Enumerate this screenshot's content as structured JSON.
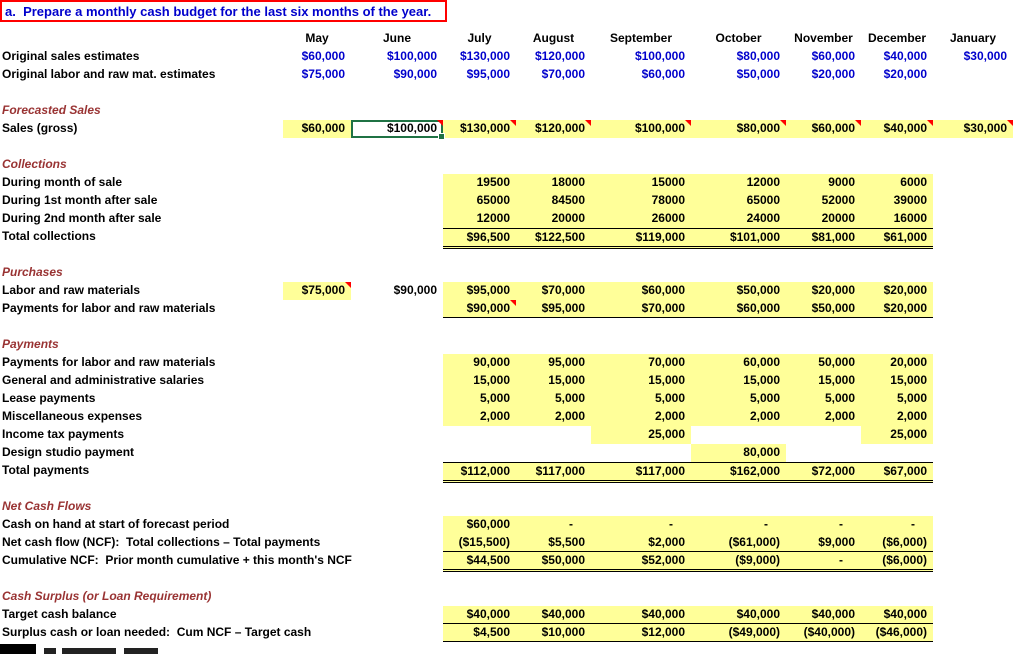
{
  "sheet": {
    "title": "a.  Prepare a monthly cash budget for the last six months of the year.",
    "months": [
      "May",
      "June",
      "July",
      "August",
      "September",
      "October",
      "November",
      "December",
      "January"
    ],
    "colors": {
      "title_text": "#0000CC",
      "title_border": "#FF0000",
      "section_text": "#993333",
      "estimate_value_blue": "#0000CC",
      "highlight_yellow": "#FFFF99",
      "comment_indicator_red": "#FF0000",
      "selection_green": "#1F7244"
    },
    "selected_cell": {
      "row": "Sales (gross)",
      "column": "June",
      "value": "$100,000"
    },
    "rows": [
      {
        "label": "Original sales estimates",
        "cells": [
          {
            "v": "$60,000",
            "c": "blue"
          },
          {
            "v": "$100,000",
            "c": "blue"
          },
          {
            "v": "$130,000",
            "c": "blue"
          },
          {
            "v": "$120,000",
            "c": "blue"
          },
          {
            "v": "$100,000",
            "c": "blue"
          },
          {
            "v": "$80,000",
            "c": "blue"
          },
          {
            "v": "$60,000",
            "c": "blue"
          },
          {
            "v": "$40,000",
            "c": "blue"
          },
          {
            "v": "$30,000",
            "c": "blue"
          }
        ]
      },
      {
        "label": "Original labor and raw mat. estimates",
        "cells": [
          {
            "v": "$75,000",
            "c": "blue"
          },
          {
            "v": "$90,000",
            "c": "blue"
          },
          {
            "v": "$95,000",
            "c": "blue"
          },
          {
            "v": "$70,000",
            "c": "blue"
          },
          {
            "v": "$60,000",
            "c": "blue"
          },
          {
            "v": "$50,000",
            "c": "blue"
          },
          {
            "v": "$20,000",
            "c": "blue"
          },
          {
            "v": "$20,000",
            "c": "blue"
          },
          null
        ]
      },
      {
        "type": "blank"
      },
      {
        "type": "section",
        "label": "Forecasted Sales"
      },
      {
        "label": "Sales (gross)",
        "cells": [
          {
            "v": "$60,000",
            "bg": "y"
          },
          {
            "v": "$100,000",
            "sel": true,
            "tri": true
          },
          {
            "v": "$130,000",
            "bg": "y",
            "tri": true
          },
          {
            "v": "$120,000",
            "bg": "y",
            "tri": true
          },
          {
            "v": "$100,000",
            "bg": "y",
            "tri": true
          },
          {
            "v": "$80,000",
            "bg": "y",
            "tri": true
          },
          {
            "v": "$60,000",
            "bg": "y",
            "tri": true
          },
          {
            "v": "$40,000",
            "bg": "y",
            "tri": true
          },
          {
            "v": "$30,000",
            "bg": "y",
            "tri": true
          }
        ]
      },
      {
        "type": "blank"
      },
      {
        "type": "section",
        "label": "Collections"
      },
      {
        "label": "During month of sale",
        "cells": [
          null,
          null,
          {
            "v": "19500",
            "bg": "y"
          },
          {
            "v": "18000",
            "bg": "y"
          },
          {
            "v": "15000",
            "bg": "y"
          },
          {
            "v": "12000",
            "bg": "y"
          },
          {
            "v": "9000",
            "bg": "y"
          },
          {
            "v": "6000",
            "bg": "y"
          },
          null
        ]
      },
      {
        "label": "During 1st month after sale",
        "cells": [
          null,
          null,
          {
            "v": "65000",
            "bg": "y"
          },
          {
            "v": "84500",
            "bg": "y"
          },
          {
            "v": "78000",
            "bg": "y"
          },
          {
            "v": "65000",
            "bg": "y"
          },
          {
            "v": "52000",
            "bg": "y"
          },
          {
            "v": "39000",
            "bg": "y"
          },
          null
        ]
      },
      {
        "label": "During 2nd month after sale",
        "cells": [
          null,
          null,
          {
            "v": "12000",
            "bg": "y"
          },
          {
            "v": "20000",
            "bg": "y"
          },
          {
            "v": "26000",
            "bg": "y"
          },
          {
            "v": "24000",
            "bg": "y"
          },
          {
            "v": "20000",
            "bg": "y"
          },
          {
            "v": "16000",
            "bg": "y"
          },
          null
        ]
      },
      {
        "label": "Total collections",
        "cells": [
          null,
          null,
          {
            "v": "$96,500",
            "bg": "y",
            "bt": true,
            "bb": "d"
          },
          {
            "v": "$122,500",
            "bg": "y",
            "bt": true,
            "bb": "d"
          },
          {
            "v": "$119,000",
            "bg": "y",
            "bt": true,
            "bb": "d"
          },
          {
            "v": "$101,000",
            "bg": "y",
            "bt": true,
            "bb": "d"
          },
          {
            "v": "$81,000",
            "bg": "y",
            "bt": true,
            "bb": "d"
          },
          {
            "v": "$61,000",
            "bg": "y",
            "bt": true,
            "bb": "d"
          },
          null
        ]
      },
      {
        "type": "blank"
      },
      {
        "type": "section",
        "label": "Purchases"
      },
      {
        "label": "Labor and raw materials",
        "cells": [
          {
            "v": "$75,000",
            "bg": "y",
            "tri": true
          },
          {
            "v": "$90,000"
          },
          {
            "v": "$95,000",
            "bg": "y"
          },
          {
            "v": "$70,000",
            "bg": "y"
          },
          {
            "v": "$60,000",
            "bg": "y"
          },
          {
            "v": "$50,000",
            "bg": "y"
          },
          {
            "v": "$20,000",
            "bg": "y"
          },
          {
            "v": "$20,000",
            "bg": "y"
          },
          null
        ]
      },
      {
        "label": "Payments for labor and raw materials",
        "cells": [
          null,
          null,
          {
            "v": "$90,000",
            "bg": "y",
            "tri": true,
            "bb": "s"
          },
          {
            "v": "$95,000",
            "bg": "y",
            "bb": "s"
          },
          {
            "v": "$70,000",
            "bg": "y",
            "bb": "s"
          },
          {
            "v": "$60,000",
            "bg": "y",
            "bb": "s"
          },
          {
            "v": "$50,000",
            "bg": "y",
            "bb": "s"
          },
          {
            "v": "$20,000",
            "bg": "y",
            "bb": "s"
          },
          null
        ]
      },
      {
        "type": "blank"
      },
      {
        "type": "section",
        "label": "Payments"
      },
      {
        "label": "Payments for labor and raw materials",
        "cells": [
          null,
          null,
          {
            "v": "90,000",
            "bg": "y"
          },
          {
            "v": "95,000",
            "bg": "y"
          },
          {
            "v": "70,000",
            "bg": "y"
          },
          {
            "v": "60,000",
            "bg": "y"
          },
          {
            "v": "50,000",
            "bg": "y"
          },
          {
            "v": "20,000",
            "bg": "y"
          },
          null
        ]
      },
      {
        "label": "General and administrative salaries",
        "cells": [
          null,
          null,
          {
            "v": "15,000",
            "bg": "y"
          },
          {
            "v": "15,000",
            "bg": "y"
          },
          {
            "v": "15,000",
            "bg": "y"
          },
          {
            "v": "15,000",
            "bg": "y"
          },
          {
            "v": "15,000",
            "bg": "y"
          },
          {
            "v": "15,000",
            "bg": "y"
          },
          null
        ]
      },
      {
        "label": "Lease payments",
        "cells": [
          null,
          null,
          {
            "v": "5,000",
            "bg": "y"
          },
          {
            "v": "5,000",
            "bg": "y"
          },
          {
            "v": "5,000",
            "bg": "y"
          },
          {
            "v": "5,000",
            "bg": "y"
          },
          {
            "v": "5,000",
            "bg": "y"
          },
          {
            "v": "5,000",
            "bg": "y"
          },
          null
        ]
      },
      {
        "label": "Miscellaneous expenses",
        "cells": [
          null,
          null,
          {
            "v": "2,000",
            "bg": "y"
          },
          {
            "v": "2,000",
            "bg": "y"
          },
          {
            "v": "2,000",
            "bg": "y"
          },
          {
            "v": "2,000",
            "bg": "y"
          },
          {
            "v": "2,000",
            "bg": "y"
          },
          {
            "v": "2,000",
            "bg": "y"
          },
          null
        ]
      },
      {
        "label": "Income tax payments",
        "cells": [
          null,
          null,
          null,
          null,
          {
            "v": "25,000",
            "bg": "y"
          },
          null,
          null,
          {
            "v": "25,000",
            "bg": "y"
          },
          null
        ]
      },
      {
        "label": "Design studio payment",
        "cells": [
          null,
          null,
          null,
          null,
          null,
          {
            "v": "80,000",
            "bg": "y"
          },
          null,
          null,
          null
        ]
      },
      {
        "label": "Total payments",
        "cells": [
          null,
          null,
          {
            "v": "$112,000",
            "bg": "y",
            "bt": true,
            "bb": "d"
          },
          {
            "v": "$117,000",
            "bg": "y",
            "bt": true,
            "bb": "d"
          },
          {
            "v": "$117,000",
            "bg": "y",
            "bt": true,
            "bb": "d"
          },
          {
            "v": "$162,000",
            "bg": "y",
            "bt": true,
            "bb": "d"
          },
          {
            "v": "$72,000",
            "bg": "y",
            "bt": true,
            "bb": "d"
          },
          {
            "v": "$67,000",
            "bg": "y",
            "bt": true,
            "bb": "d"
          },
          null
        ]
      },
      {
        "type": "blank"
      },
      {
        "type": "section",
        "label": "Net Cash Flows"
      },
      {
        "label": "Cash on hand at start of forecast period",
        "cells": [
          null,
          null,
          {
            "v": "$60,000",
            "bg": "y"
          },
          {
            "v": "-",
            "bg": "y",
            "dash": true
          },
          {
            "v": "-",
            "bg": "y",
            "dash": true
          },
          {
            "v": "-",
            "bg": "y",
            "dash": true
          },
          {
            "v": "-",
            "bg": "y",
            "dash": true
          },
          {
            "v": "-",
            "bg": "y",
            "dash": true
          },
          null
        ]
      },
      {
        "label": "Net cash flow (NCF):  Total collections – Total payments",
        "cells": [
          null,
          null,
          {
            "v": "($15,500)",
            "bg": "y",
            "bb": "s"
          },
          {
            "v": "$5,500",
            "bg": "y",
            "bb": "s"
          },
          {
            "v": "$2,000",
            "bg": "y",
            "bb": "s"
          },
          {
            "v": "($61,000)",
            "bg": "y",
            "bb": "s"
          },
          {
            "v": "$9,000",
            "bg": "y",
            "bb": "s"
          },
          {
            "v": "($6,000)",
            "bg": "y",
            "bb": "s"
          },
          null
        ]
      },
      {
        "label": "Cumulative NCF:  Prior month cumulative + this month's NCF",
        "cells": [
          null,
          null,
          {
            "v": "$44,500",
            "bg": "y",
            "bb": "d"
          },
          {
            "v": "$50,000",
            "bg": "y",
            "bb": "d"
          },
          {
            "v": "$52,000",
            "bg": "y",
            "bb": "d"
          },
          {
            "v": "($9,000)",
            "bg": "y",
            "bb": "d"
          },
          {
            "v": "-",
            "bg": "y",
            "dash": true,
            "bb": "d"
          },
          {
            "v": "($6,000)",
            "bg": "y",
            "bb": "d"
          },
          null
        ]
      },
      {
        "type": "blank"
      },
      {
        "type": "section",
        "label": "Cash Surplus (or Loan Requirement)"
      },
      {
        "label": "Target cash balance",
        "cells": [
          null,
          null,
          {
            "v": "$40,000",
            "bg": "y",
            "bb": "s"
          },
          {
            "v": "$40,000",
            "bg": "y",
            "bb": "s"
          },
          {
            "v": "$40,000",
            "bg": "y",
            "bb": "s"
          },
          {
            "v": "$40,000",
            "bg": "y",
            "bb": "s"
          },
          {
            "v": "$40,000",
            "bg": "y",
            "bb": "s"
          },
          {
            "v": "$40,000",
            "bg": "y",
            "bb": "s"
          },
          null
        ]
      },
      {
        "label": "Surplus cash or loan needed:  Cum NCF – Target cash",
        "cells": [
          null,
          null,
          {
            "v": "$4,500",
            "bg": "y",
            "bb": "d"
          },
          {
            "v": "$10,000",
            "bg": "y",
            "bb": "d"
          },
          {
            "v": "$12,000",
            "bg": "y",
            "bb": "d"
          },
          {
            "v": "($49,000)",
            "bg": "y",
            "bb": "d"
          },
          {
            "v": "($40,000)",
            "bg": "y",
            "bb": "d"
          },
          {
            "v": "($46,000)",
            "bg": "y",
            "bb": "d"
          },
          null
        ]
      }
    ]
  }
}
